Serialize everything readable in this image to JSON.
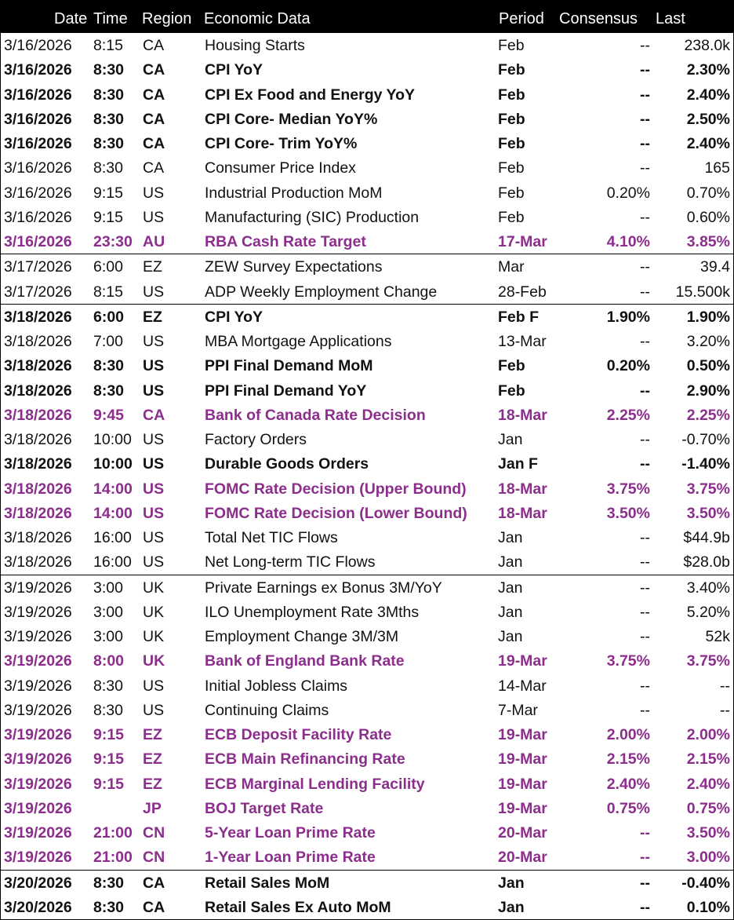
{
  "headers": {
    "date": "Date",
    "time": "Time",
    "region": "Region",
    "event": "Economic Data",
    "period": "Period",
    "consensus": "Consensus",
    "last": "Last"
  },
  "colors": {
    "header_bg": "#000000",
    "header_text": "#ffffff",
    "highlight": "#8c2e8c"
  },
  "rows": [
    {
      "date": "3/16/2026",
      "time": "8:15",
      "region": "CA",
      "event": "Housing Starts",
      "period": "Feb",
      "consensus": "--",
      "last": "238.0k",
      "style": "normal",
      "sep": false
    },
    {
      "date": "3/16/2026",
      "time": "8:30",
      "region": "CA",
      "event": "CPI YoY",
      "period": "Feb",
      "consensus": "--",
      "last": "2.30%",
      "style": "bold",
      "sep": false
    },
    {
      "date": "3/16/2026",
      "time": "8:30",
      "region": "CA",
      "event": "CPI Ex Food and Energy YoY",
      "period": "Feb",
      "consensus": "--",
      "last": "2.40%",
      "style": "bold",
      "sep": false
    },
    {
      "date": "3/16/2026",
      "time": "8:30",
      "region": "CA",
      "event": "CPI Core- Median YoY%",
      "period": "Feb",
      "consensus": "--",
      "last": "2.50%",
      "style": "bold",
      "sep": false
    },
    {
      "date": "3/16/2026",
      "time": "8:30",
      "region": "CA",
      "event": "CPI Core- Trim YoY%",
      "period": "Feb",
      "consensus": "--",
      "last": "2.40%",
      "style": "bold",
      "sep": false
    },
    {
      "date": "3/16/2026",
      "time": "8:30",
      "region": "CA",
      "event": "Consumer Price Index",
      "period": "Feb",
      "consensus": "--",
      "last": "165",
      "style": "normal",
      "sep": false
    },
    {
      "date": "3/16/2026",
      "time": "9:15",
      "region": "US",
      "event": "Industrial Production MoM",
      "period": "Feb",
      "consensus": "0.20%",
      "last": "0.70%",
      "style": "normal",
      "sep": false
    },
    {
      "date": "3/16/2026",
      "time": "9:15",
      "region": "US",
      "event": "Manufacturing (SIC) Production",
      "period": "Feb",
      "consensus": "--",
      "last": "0.60%",
      "style": "normal",
      "sep": false
    },
    {
      "date": "3/16/2026",
      "time": "23:30",
      "region": "AU",
      "event": "RBA Cash Rate Target",
      "period": "17-Mar",
      "consensus": "4.10%",
      "last": "3.85%",
      "style": "purple",
      "sep": false
    },
    {
      "date": "3/17/2026",
      "time": "6:00",
      "region": "EZ",
      "event": "ZEW Survey Expectations",
      "period": "Mar",
      "consensus": "--",
      "last": "39.4",
      "style": "normal",
      "sep": true
    },
    {
      "date": "3/17/2026",
      "time": "8:15",
      "region": "US",
      "event": "ADP Weekly Employment Change",
      "period": "28-Feb",
      "consensus": "--",
      "last": "15.500k",
      "style": "normal",
      "sep": false
    },
    {
      "date": "3/18/2026",
      "time": "6:00",
      "region": "EZ",
      "event": "CPI YoY",
      "period": "Feb F",
      "consensus": "1.90%",
      "last": "1.90%",
      "style": "bold",
      "sep": true
    },
    {
      "date": "3/18/2026",
      "time": "7:00",
      "region": "US",
      "event": "MBA Mortgage Applications",
      "period": "13-Mar",
      "consensus": "--",
      "last": "3.20%",
      "style": "normal",
      "sep": false
    },
    {
      "date": "3/18/2026",
      "time": "8:30",
      "region": "US",
      "event": "PPI Final Demand MoM",
      "period": "Feb",
      "consensus": "0.20%",
      "last": "0.50%",
      "style": "bold",
      "sep": false
    },
    {
      "date": "3/18/2026",
      "time": "8:30",
      "region": "US",
      "event": "PPI Final Demand YoY",
      "period": "Feb",
      "consensus": "--",
      "last": "2.90%",
      "style": "bold",
      "sep": false
    },
    {
      "date": "3/18/2026",
      "time": "9:45",
      "region": "CA",
      "event": "Bank of Canada Rate Decision",
      "period": "18-Mar",
      "consensus": "2.25%",
      "last": "2.25%",
      "style": "purple",
      "sep": false
    },
    {
      "date": "3/18/2026",
      "time": "10:00",
      "region": "US",
      "event": "Factory Orders",
      "period": "Jan",
      "consensus": "--",
      "last": "-0.70%",
      "style": "normal",
      "sep": false
    },
    {
      "date": "3/18/2026",
      "time": "10:00",
      "region": "US",
      "event": "Durable Goods Orders",
      "period": "Jan F",
      "consensus": "--",
      "last": "-1.40%",
      "style": "bold",
      "sep": false
    },
    {
      "date": "3/18/2026",
      "time": "14:00",
      "region": "US",
      "event": "FOMC Rate Decision (Upper Bound)",
      "period": "18-Mar",
      "consensus": "3.75%",
      "last": "3.75%",
      "style": "purple",
      "sep": false
    },
    {
      "date": "3/18/2026",
      "time": "14:00",
      "region": "US",
      "event": "FOMC Rate Decision (Lower Bound)",
      "period": "18-Mar",
      "consensus": "3.50%",
      "last": "3.50%",
      "style": "purple",
      "sep": false
    },
    {
      "date": "3/18/2026",
      "time": "16:00",
      "region": "US",
      "event": "Total Net TIC Flows",
      "period": "Jan",
      "consensus": "--",
      "last": "$44.9b",
      "style": "normal",
      "sep": false
    },
    {
      "date": "3/18/2026",
      "time": "16:00",
      "region": "US",
      "event": "Net Long-term TIC Flows",
      "period": "Jan",
      "consensus": "--",
      "last": "$28.0b",
      "style": "normal",
      "sep": false
    },
    {
      "date": "3/19/2026",
      "time": "3:00",
      "region": "UK",
      "event": "Private Earnings ex Bonus 3M/YoY",
      "period": "Jan",
      "consensus": "--",
      "last": "3.40%",
      "style": "normal",
      "sep": true
    },
    {
      "date": "3/19/2026",
      "time": "3:00",
      "region": "UK",
      "event": "ILO Unemployment Rate 3Mths",
      "period": "Jan",
      "consensus": "--",
      "last": "5.20%",
      "style": "normal",
      "sep": false
    },
    {
      "date": "3/19/2026",
      "time": "3:00",
      "region": "UK",
      "event": "Employment Change 3M/3M",
      "period": "Jan",
      "consensus": "--",
      "last": "52k",
      "style": "normal",
      "sep": false
    },
    {
      "date": "3/19/2026",
      "time": "8:00",
      "region": "UK",
      "event": "Bank of England Bank Rate",
      "period": "19-Mar",
      "consensus": "3.75%",
      "last": "3.75%",
      "style": "purple",
      "sep": false
    },
    {
      "date": "3/19/2026",
      "time": "8:30",
      "region": "US",
      "event": "Initial Jobless Claims",
      "period": "14-Mar",
      "consensus": "--",
      "last": "--",
      "style": "normal",
      "sep": false
    },
    {
      "date": "3/19/2026",
      "time": "8:30",
      "region": "US",
      "event": "Continuing Claims",
      "period": "7-Mar",
      "consensus": "--",
      "last": "--",
      "style": "normal",
      "sep": false
    },
    {
      "date": "3/19/2026",
      "time": "9:15",
      "region": "EZ",
      "event": "ECB Deposit Facility Rate",
      "period": "19-Mar",
      "consensus": "2.00%",
      "last": "2.00%",
      "style": "purple",
      "sep": false
    },
    {
      "date": "3/19/2026",
      "time": "9:15",
      "region": "EZ",
      "event": "ECB Main Refinancing Rate",
      "period": "19-Mar",
      "consensus": "2.15%",
      "last": "2.15%",
      "style": "purple",
      "sep": false
    },
    {
      "date": "3/19/2026",
      "time": "9:15",
      "region": "EZ",
      "event": "ECB Marginal Lending Facility",
      "period": "19-Mar",
      "consensus": "2.40%",
      "last": "2.40%",
      "style": "purple",
      "sep": false
    },
    {
      "date": "3/19/2026",
      "time": "",
      "region": "JP",
      "event": "BOJ Target Rate",
      "period": "19-Mar",
      "consensus": "0.75%",
      "last": "0.75%",
      "style": "purple",
      "sep": false
    },
    {
      "date": "3/19/2026",
      "time": "21:00",
      "region": "CN",
      "event": "5-Year Loan Prime Rate",
      "period": "20-Mar",
      "consensus": "--",
      "last": "3.50%",
      "style": "purple",
      "sep": false
    },
    {
      "date": "3/19/2026",
      "time": "21:00",
      "region": "CN",
      "event": "1-Year Loan Prime Rate",
      "period": "20-Mar",
      "consensus": "--",
      "last": "3.00%",
      "style": "purple",
      "sep": false
    },
    {
      "date": "3/20/2026",
      "time": "8:30",
      "region": "CA",
      "event": "Retail Sales MoM",
      "period": "Jan",
      "consensus": "--",
      "last": "-0.40%",
      "style": "bold",
      "sep": true
    },
    {
      "date": "3/20/2026",
      "time": "8:30",
      "region": "CA",
      "event": "Retail Sales Ex Auto MoM",
      "period": "Jan",
      "consensus": "--",
      "last": "0.10%",
      "style": "bold",
      "sep": false
    }
  ]
}
